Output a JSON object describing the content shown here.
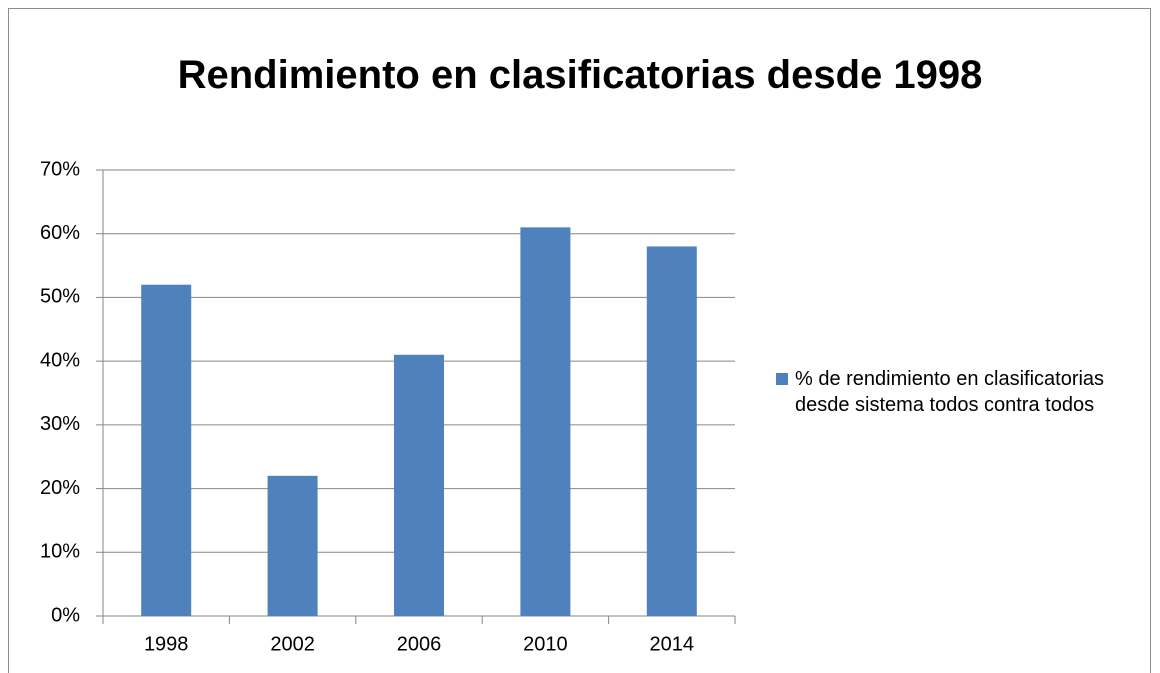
{
  "chart_data": {
    "type": "bar",
    "title": "Rendimiento en clasificatorias desde 1998",
    "categories": [
      "1998",
      "2002",
      "2006",
      "2010",
      "2014"
    ],
    "series": [
      {
        "name": "% de rendimiento en clasificatorias desde sistema todos contra todos",
        "color": "#4f81bd",
        "values": [
          52,
          22,
          41,
          61,
          58
        ]
      }
    ],
    "ylim": [
      0,
      70
    ],
    "yticks": [
      {
        "value": 0,
        "label": "0%"
      },
      {
        "value": 10,
        "label": "10%"
      },
      {
        "value": 20,
        "label": "20%"
      },
      {
        "value": 30,
        "label": "30%"
      },
      {
        "value": 40,
        "label": "40%"
      },
      {
        "value": 50,
        "label": "50%"
      },
      {
        "value": 60,
        "label": "60%"
      },
      {
        "value": 70,
        "label": "70%"
      }
    ],
    "grid": true,
    "legend": "right"
  }
}
